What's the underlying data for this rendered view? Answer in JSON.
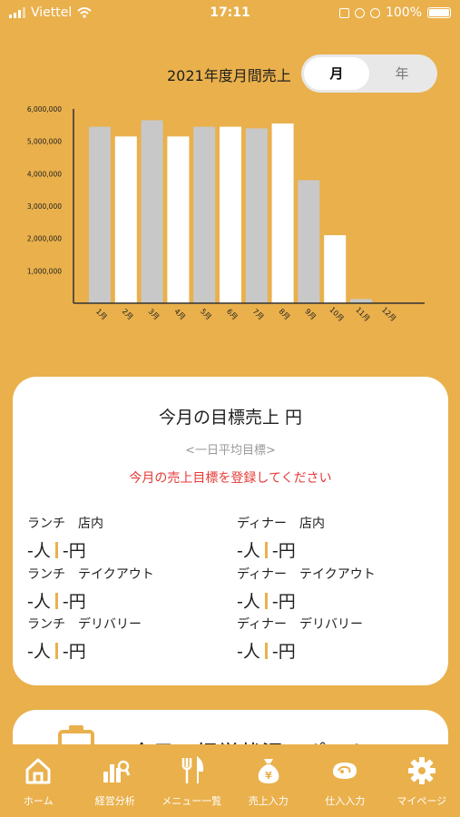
{
  "status_bar": {
    "carrier": "Viettel",
    "time": "17:11",
    "battery": "100%"
  },
  "header": {
    "title": "2021年度月間売上",
    "toggle": {
      "month_label": "月",
      "year_label": "年",
      "selected": "月"
    }
  },
  "chart_data": {
    "type": "bar",
    "title": "2021年度月間売上",
    "categories": [
      "1月",
      "2月",
      "3月",
      "4月",
      "5月",
      "6月",
      "7月",
      "8月",
      "9月",
      "10月",
      "11月",
      "12月"
    ],
    "values": [
      5450000,
      5150000,
      5650000,
      5150000,
      5450000,
      5450000,
      5400000,
      5550000,
      3800000,
      2100000,
      130000,
      0
    ],
    "colors": [
      "#C8C8C8",
      "#FFFFFF",
      "#C8C8C8",
      "#FFFFFF",
      "#C8C8C8",
      "#FFFFFF",
      "#C8C8C8",
      "#FFFFFF",
      "#C8C8C8",
      "#FFFFFF",
      "#C8C8C8",
      "#FFFFFF"
    ],
    "yticks": [
      1000000,
      2000000,
      3000000,
      4000000,
      5000000,
      6000000
    ],
    "ytick_labels": [
      "1,000,000",
      "2,000,000",
      "3,000,000",
      "4,000,000",
      "5,000,000",
      "6,000,000"
    ],
    "ylim": [
      0,
      6000000
    ],
    "grid": false,
    "xlabel": "",
    "ylabel": ""
  },
  "target_card": {
    "title": "今月の目標売上  円",
    "subtitle": "<一日平均目標>",
    "warning": "今月の売上目標を登録してください",
    "metrics": [
      {
        "label": "ランチ　店内",
        "people": "-人",
        "yen": "-円"
      },
      {
        "label": "ディナー　店内",
        "people": "-人",
        "yen": "-円"
      },
      {
        "label": "ランチ　テイクアウト",
        "people": "-人",
        "yen": "-円"
      },
      {
        "label": "ディナー　テイクアウト",
        "people": "-人",
        "yen": "-円"
      },
      {
        "label": "ランチ　デリバリー",
        "people": "-人",
        "yen": "-円"
      },
      {
        "label": "ディナー　デリバリー",
        "people": "-人",
        "yen": "-円"
      }
    ]
  },
  "report_card": {
    "title": "今日の経営状況レポート"
  },
  "tabbar": {
    "tabs": [
      {
        "label": "ホーム",
        "icon": "home-icon"
      },
      {
        "label": "経営分析",
        "icon": "analytics-icon"
      },
      {
        "label": "メニュー一覧",
        "icon": "cutlery-icon"
      },
      {
        "label": "売上入力",
        "icon": "money-bag-icon"
      },
      {
        "label": "仕入入力",
        "icon": "meat-icon"
      },
      {
        "label": "マイページ",
        "icon": "gear-icon"
      }
    ]
  },
  "colors": {
    "background": "#E9B04C",
    "accent": "#E9B04C",
    "warning": "#E53935"
  }
}
